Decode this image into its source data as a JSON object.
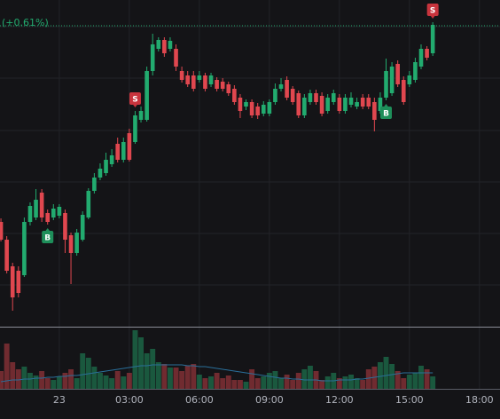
{
  "chart_data": {
    "type": "candlestick",
    "x": [
      -2.5,
      -2.25,
      -2,
      -1.75,
      -1.5,
      -1.25,
      -1,
      -0.75,
      -0.5,
      -0.25,
      0,
      0.25,
      0.5,
      0.75,
      1,
      1.25,
      1.5,
      1.75,
      2,
      2.25,
      2.5,
      2.75,
      3,
      3.25,
      3.5,
      3.75,
      4,
      4.25,
      4.5,
      4.75,
      5,
      5.25,
      5.5,
      5.75,
      6,
      6.25,
      6.5,
      6.75,
      7,
      7.25,
      7.5,
      7.75,
      8,
      8.25,
      8.5,
      8.75,
      9,
      9.25,
      9.5,
      9.75,
      10,
      10.25,
      10.5,
      10.75,
      11,
      11.25,
      11.5,
      11.75,
      12,
      12.25,
      12.5,
      12.75,
      13,
      13.25,
      13.5,
      13.75,
      14,
      14.25,
      14.5,
      14.75,
      15,
      15.25,
      15.5,
      15.75,
      16
    ],
    "open": [
      118,
      98,
      68,
      63,
      58,
      118,
      123,
      151,
      128,
      123,
      125,
      128,
      103,
      83,
      98,
      123,
      153,
      168,
      173,
      183,
      206,
      188,
      218,
      208,
      233,
      233,
      288,
      313,
      323,
      313,
      313,
      288,
      283,
      283,
      278,
      283,
      273,
      278,
      276,
      273,
      268,
      258,
      248,
      253,
      248,
      240,
      240,
      253,
      268,
      278,
      268,
      263,
      238,
      253,
      263,
      260,
      243,
      253,
      258,
      243,
      250,
      248,
      258,
      258,
      253,
      243,
      258,
      263,
      296,
      278,
      273,
      278,
      293,
      313,
      308
    ],
    "high": [
      122,
      102,
      72,
      68,
      123,
      140,
      155,
      155,
      132,
      138,
      138,
      132,
      106,
      110,
      130,
      156,
      173,
      184,
      196,
      200,
      213,
      213,
      223,
      243,
      248,
      293,
      330,
      326,
      326,
      326,
      318,
      293,
      288,
      288,
      288,
      286,
      286,
      281,
      280,
      276,
      272,
      262,
      256,
      256,
      252,
      254,
      256,
      274,
      280,
      282,
      271,
      266,
      262,
      267,
      267,
      264,
      262,
      267,
      262,
      262,
      264,
      258,
      262,
      262,
      258,
      264,
      302,
      298,
      300,
      282,
      288,
      303,
      318,
      316,
      343
    ],
    "low": [
      96,
      60,
      18,
      33,
      56,
      114,
      120,
      118,
      115,
      120,
      122,
      83,
      48,
      80,
      96,
      121,
      150,
      165,
      170,
      180,
      185,
      185,
      186,
      206,
      230,
      231,
      283,
      310,
      304,
      310,
      288,
      275,
      270,
      265,
      275,
      265,
      270,
      265,
      265,
      260,
      250,
      235,
      244,
      235,
      234,
      237,
      237,
      250,
      265,
      255,
      250,
      235,
      235,
      250,
      250,
      237,
      240,
      250,
      240,
      240,
      247,
      245,
      245,
      245,
      220,
      240,
      255,
      260,
      270,
      250,
      270,
      275,
      290,
      300,
      305
    ],
    "close": [
      98,
      63,
      33,
      38,
      118,
      136,
      143,
      123,
      118,
      133,
      135,
      98,
      83,
      106,
      126,
      153,
      168,
      178,
      188,
      193,
      188,
      208,
      188,
      238,
      243,
      288,
      318,
      323,
      308,
      322,
      293,
      278,
      273,
      268,
      283,
      268,
      283,
      268,
      268,
      263,
      253,
      243,
      253,
      238,
      238,
      250,
      253,
      268,
      273,
      258,
      253,
      238,
      258,
      263,
      253,
      240,
      258,
      263,
      243,
      258,
      258,
      253,
      248,
      248,
      233,
      258,
      288,
      293,
      273,
      253,
      283,
      298,
      313,
      303,
      340
    ],
    "volume": [
      20,
      51,
      30,
      22,
      25,
      18,
      15,
      20,
      12,
      10,
      14,
      18,
      22,
      12,
      40,
      35,
      25,
      18,
      15,
      12,
      20,
      14,
      18,
      66,
      58,
      40,
      45,
      30,
      28,
      24,
      24,
      20,
      26,
      28,
      16,
      12,
      14,
      18,
      12,
      15,
      10,
      10,
      8,
      22,
      12,
      14,
      18,
      20,
      12,
      16,
      10,
      18,
      22,
      26,
      20,
      10,
      14,
      18,
      12,
      14,
      16,
      12,
      10,
      22,
      25,
      30,
      36,
      28,
      20,
      12,
      16,
      18,
      26,
      22,
      14
    ],
    "volume_ma": [
      8,
      9,
      10,
      10,
      11,
      11,
      12,
      12,
      13,
      13,
      14,
      14,
      15,
      15,
      16,
      17,
      18,
      19,
      20,
      21,
      22,
      23,
      24,
      25,
      26,
      26,
      27,
      27,
      27,
      27,
      27,
      27,
      26,
      26,
      25,
      25,
      24,
      23,
      22,
      21,
      20,
      19,
      18,
      17,
      16,
      15,
      14,
      13,
      12,
      12,
      11,
      11,
      10,
      10,
      10,
      9,
      9,
      9,
      10,
      10,
      10,
      11,
      11,
      12,
      13,
      14,
      15,
      16,
      17,
      18,
      18,
      18,
      18,
      18,
      18
    ],
    "xlim": [
      -2.54,
      18.88
    ],
    "xticks": [
      {
        "value": 0,
        "label": "23"
      },
      {
        "value": 3,
        "label": "03:00"
      },
      {
        "value": 6,
        "label": "06:00"
      },
      {
        "value": 9,
        "label": "09:00"
      },
      {
        "value": 12,
        "label": "12:00"
      },
      {
        "value": 15,
        "label": "15:00"
      },
      {
        "value": 18,
        "label": "18:00"
      }
    ],
    "ylim": [
      0,
      368
    ],
    "ygrid": [
      338,
      280,
      221,
      163,
      105,
      47
    ],
    "volume_ylim": [
      0,
      70
    ],
    "up_color": "#22ab6f",
    "down_color": "#e0474f",
    "ma_color": "#2a6f9a",
    "last_price_line": {
      "value": 339,
      "label": "(+0.61%)"
    },
    "markers": [
      {
        "x": -0.5,
        "text": "B"
      },
      {
        "x": 3.25,
        "text": "S"
      },
      {
        "x": 14,
        "text": "B"
      },
      {
        "x": 16,
        "text": "S"
      }
    ]
  }
}
